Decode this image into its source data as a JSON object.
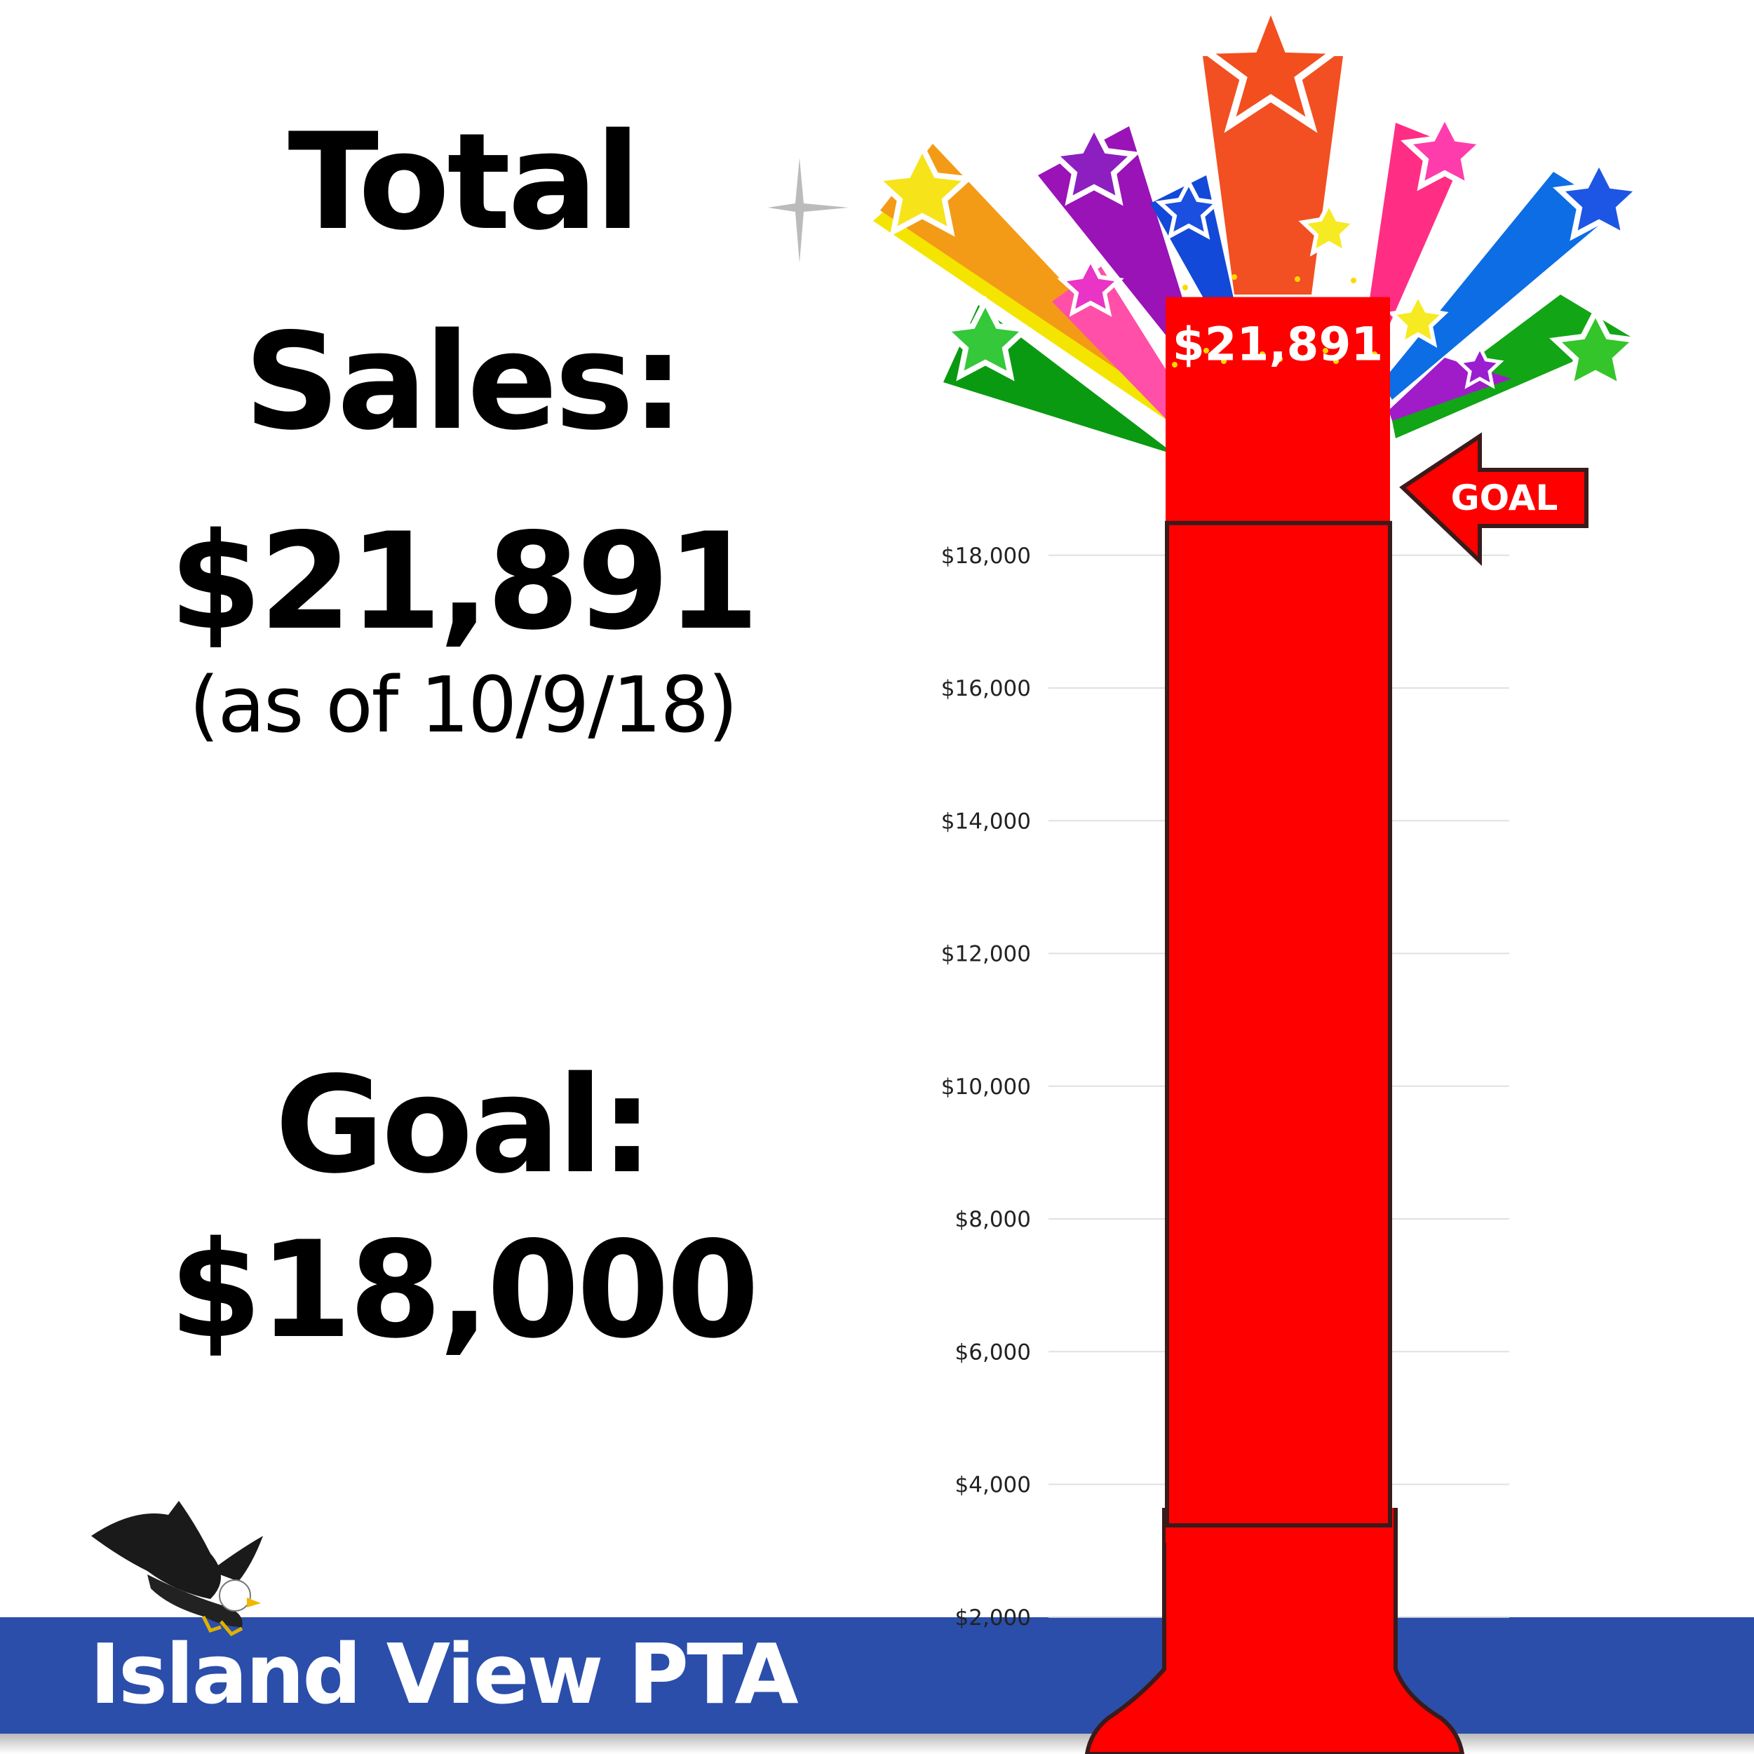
{
  "heading": {
    "line1": "Total",
    "line2": "Sales:",
    "amount": "$21,891",
    "as_of": "(as of 10/9/18)",
    "goal_label": "Goal:",
    "goal_amount": "$18,000"
  },
  "banner": {
    "text": "Island View PTA"
  },
  "goal_marker": {
    "label": "GOAL"
  },
  "chart_data": {
    "type": "bar",
    "categories": [
      ""
    ],
    "values": [
      21891
    ],
    "goal": 18000,
    "value_label": "$21,891",
    "y_ticks": [
      2000,
      4000,
      6000,
      8000,
      10000,
      12000,
      14000,
      16000,
      18000
    ],
    "y_tick_labels": [
      "$2,000",
      "$4,000",
      "$6,000",
      "$8,000",
      "$10,000",
      "$12,000",
      "$14,000",
      "$16,000",
      "$18,000"
    ],
    "grid": true,
    "colors": {
      "bar": "#ff0000",
      "outline": "#3a1b1b",
      "grid": "#e0e0e0",
      "banner": "#2b4eab"
    }
  }
}
